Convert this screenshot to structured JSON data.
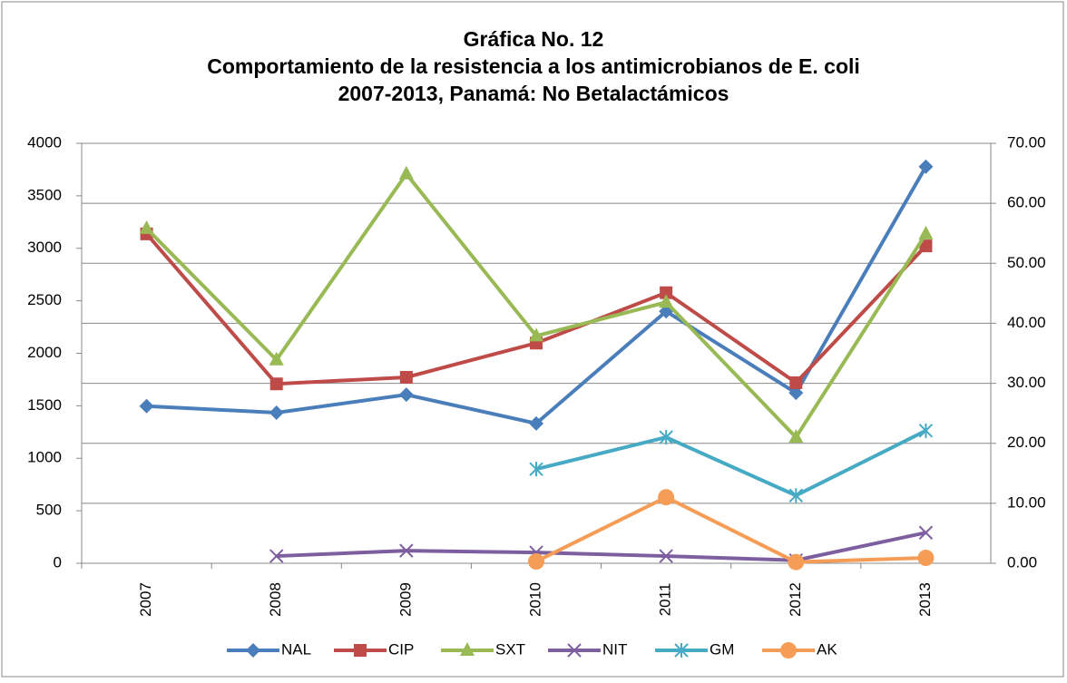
{
  "chart_data": {
    "type": "line",
    "title": [
      "Gráfica No. 12",
      "Comportamiento de la resistencia a los antimicrobianos de E. coli",
      "2007-2013, Panamá: No Betalactámicos"
    ],
    "categories": [
      "2007",
      "2008",
      "2009",
      "2010",
      "2011",
      "2012",
      "2013"
    ],
    "ylim": [
      0,
      4000
    ],
    "yticks": [
      0,
      500,
      1000,
      1500,
      2000,
      2500,
      3000,
      3500,
      4000
    ],
    "y2lim": [
      0,
      70
    ],
    "y2ticks": [
      {
        "value": 0,
        "label": "0.00"
      },
      {
        "value": 10,
        "label": "10.00"
      },
      {
        "value": 20,
        "label": "20.00"
      },
      {
        "value": 30,
        "label": "30.00"
      },
      {
        "value": 40,
        "label": "40.00"
      },
      {
        "value": 50,
        "label": "50.00"
      },
      {
        "value": 60,
        "label": "60.00"
      },
      {
        "value": 70,
        "label": "70.00"
      }
    ],
    "grid": true,
    "legend": "bottom",
    "series": [
      {
        "name": "NAL",
        "color": "#4a7ebb",
        "axis": "y2",
        "marker": "diamond",
        "values": [
          26.2,
          25.1,
          28.1,
          23.3,
          42.0,
          28.4,
          66.1
        ]
      },
      {
        "name": "CIP",
        "color": "#be4b48",
        "axis": "y2",
        "marker": "square",
        "values": [
          54.9,
          29.9,
          31.0,
          36.7,
          45.1,
          30.1,
          52.9
        ]
      },
      {
        "name": "SXT",
        "color": "#98b954",
        "axis": "y2",
        "marker": "triangle",
        "values": [
          55.8,
          33.9,
          64.9,
          37.9,
          43.5,
          21.0,
          54.9
        ]
      },
      {
        "name": "NIT",
        "color": "#7d5fa0",
        "axis": "y2",
        "marker": "x",
        "values": [
          null,
          1.2,
          2.1,
          1.8,
          1.2,
          0.5,
          5.1
        ]
      },
      {
        "name": "GM",
        "color": "#46aac5",
        "axis": "y2",
        "marker": "star",
        "values": [
          null,
          null,
          null,
          15.7,
          21.0,
          11.3,
          22.1
        ]
      },
      {
        "name": "AK",
        "color": "#f59d56",
        "axis": "y2",
        "marker": "circle",
        "values": [
          null,
          null,
          null,
          0.3,
          11.0,
          0.2,
          0.9
        ]
      }
    ]
  }
}
